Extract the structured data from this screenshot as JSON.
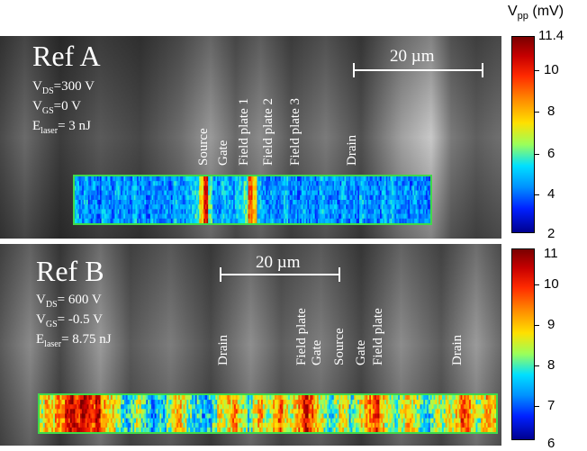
{
  "colorbar_title": {
    "symbol": "V",
    "sub": "pp",
    "unit": " (mV)"
  },
  "panel_a": {
    "title": "Ref A",
    "params": [
      {
        "sym": "V",
        "sub": "DS",
        "rest": "=300 V"
      },
      {
        "sym": "V",
        "sub": "GS",
        "rest": "=0 V"
      },
      {
        "sym": "E",
        "sub": "laser",
        "rest": "= 3 nJ"
      }
    ],
    "scale_label": "20 µm",
    "labels": [
      "Source",
      "Gate",
      "Field plate 1",
      "Field plate 2",
      "Field plate 3",
      "Drain"
    ],
    "colorbar": {
      "max_label": "11.4",
      "ticks": [
        "10",
        "8",
        "6",
        "4",
        "2"
      ],
      "min": 2,
      "max": 11.4
    },
    "heatmap_profile": [
      0.28,
      0.22,
      0.3,
      0.2,
      0.25,
      0.18,
      0.3,
      0.24,
      0.2,
      0.28,
      0.22,
      0.26,
      0.2,
      0.3,
      0.22,
      0.25,
      0.2,
      0.28,
      0.24,
      0.22,
      0.26,
      0.2,
      0.3,
      0.25,
      0.22,
      0.28,
      0.3,
      0.35,
      0.55,
      0.85,
      0.4,
      0.25,
      0.22,
      0.3,
      0.28,
      0.24,
      0.3,
      0.32,
      0.4,
      0.75,
      0.6,
      0.3,
      0.25,
      0.22,
      0.28,
      0.2,
      0.24,
      0.3,
      0.22,
      0.26,
      0.2,
      0.28,
      0.22,
      0.25,
      0.2,
      0.3,
      0.24,
      0.22,
      0.26,
      0.2,
      0.28,
      0.22,
      0.25,
      0.2,
      0.3,
      0.24,
      0.22,
      0.26,
      0.2,
      0.28,
      0.22,
      0.3,
      0.24,
      0.22,
      0.26,
      0.2,
      0.28,
      0.22,
      0.25,
      0.2
    ]
  },
  "panel_b": {
    "title": "Ref B",
    "params": [
      {
        "sym": "V",
        "sub": "DS",
        "rest": "= 600 V"
      },
      {
        "sym": "V",
        "sub": "GS",
        "rest": "= -0.5 V"
      },
      {
        "sym": "E",
        "sub": "laser",
        "rest": "= 8.75 nJ"
      }
    ],
    "scale_label": "20 µm",
    "labels": [
      "Drain",
      "Field plate",
      "Gate",
      "Source",
      "Gate",
      "Field plate",
      "Drain"
    ],
    "colorbar": {
      "max_label": "11",
      "ticks": [
        "10",
        "9",
        "8",
        "7",
        "6"
      ],
      "min": 6,
      "max": 11
    },
    "heatmap_profile": [
      0.5,
      0.62,
      0.55,
      0.7,
      0.65,
      0.85,
      0.9,
      0.8,
      0.95,
      0.85,
      0.75,
      0.9,
      0.65,
      0.55,
      0.6,
      0.45,
      0.35,
      0.3,
      0.4,
      0.5,
      0.38,
      0.3,
      0.25,
      0.35,
      0.3,
      0.45,
      0.55,
      0.6,
      0.5,
      0.4,
      0.3,
      0.35,
      0.25,
      0.3,
      0.4,
      0.55,
      0.5,
      0.6,
      0.7,
      0.55,
      0.45,
      0.35,
      0.55,
      0.65,
      0.5,
      0.45,
      0.6,
      0.75,
      0.55,
      0.5,
      0.6,
      0.7,
      0.85,
      0.75,
      0.6,
      0.5,
      0.4,
      0.35,
      0.45,
      0.55,
      0.5,
      0.35,
      0.45,
      0.55,
      0.65,
      0.7,
      0.8,
      0.6,
      0.5,
      0.45,
      0.4,
      0.5,
      0.6,
      0.55,
      0.45,
      0.35,
      0.3,
      0.4,
      0.5,
      0.45,
      0.55,
      0.5,
      0.6,
      0.75,
      0.7,
      0.55,
      0.45,
      0.55,
      0.65,
      0.6
    ]
  }
}
